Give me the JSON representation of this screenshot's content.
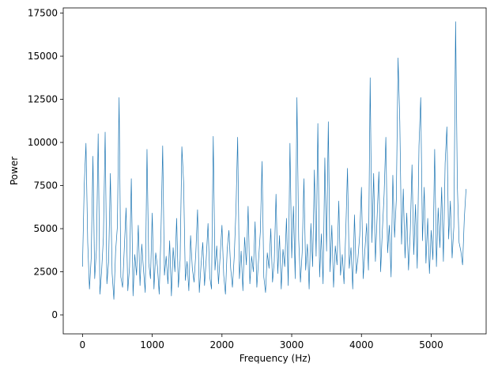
{
  "chart_data": {
    "type": "line",
    "xlabel": "Frequency (Hz)",
    "ylabel": "Power",
    "xlim": [
      -276,
      5788
    ],
    "ylim": [
      -1100,
      17800
    ],
    "xticks": [
      0,
      1000,
      2000,
      3000,
      4000,
      5000
    ],
    "yticks": [
      0,
      2500,
      5000,
      7500,
      10000,
      12500,
      15000,
      17500
    ],
    "grid": false,
    "x": [
      0,
      25,
      50,
      75,
      100,
      125,
      150,
      175,
      200,
      225,
      250,
      275,
      300,
      325,
      350,
      375,
      400,
      425,
      450,
      475,
      500,
      525,
      550,
      575,
      600,
      625,
      650,
      675,
      700,
      725,
      750,
      775,
      800,
      825,
      850,
      875,
      900,
      925,
      950,
      975,
      1000,
      1025,
      1050,
      1075,
      1100,
      1125,
      1150,
      1175,
      1200,
      1225,
      1250,
      1275,
      1300,
      1325,
      1350,
      1375,
      1400,
      1425,
      1450,
      1475,
      1500,
      1525,
      1550,
      1575,
      1600,
      1625,
      1650,
      1675,
      1700,
      1725,
      1750,
      1775,
      1800,
      1825,
      1850,
      1875,
      1900,
      1925,
      1950,
      1975,
      2000,
      2025,
      2050,
      2075,
      2100,
      2125,
      2150,
      2175,
      2200,
      2225,
      2250,
      2275,
      2300,
      2325,
      2350,
      2375,
      2400,
      2425,
      2450,
      2475,
      2500,
      2525,
      2550,
      2575,
      2600,
      2625,
      2650,
      2675,
      2700,
      2725,
      2750,
      2775,
      2800,
      2825,
      2850,
      2875,
      2900,
      2925,
      2950,
      2975,
      3000,
      3025,
      3050,
      3075,
      3100,
      3125,
      3150,
      3175,
      3200,
      3225,
      3250,
      3275,
      3300,
      3325,
      3350,
      3375,
      3400,
      3425,
      3450,
      3475,
      3500,
      3525,
      3550,
      3575,
      3600,
      3625,
      3650,
      3675,
      3700,
      3725,
      3750,
      3775,
      3800,
      3825,
      3850,
      3875,
      3900,
      3925,
      3950,
      3975,
      4000,
      4025,
      4050,
      4075,
      4100,
      4125,
      4150,
      4175,
      4200,
      4225,
      4250,
      4275,
      4300,
      4325,
      4350,
      4375,
      4400,
      4425,
      4450,
      4475,
      4500,
      4525,
      4550,
      4575,
      4600,
      4625,
      4650,
      4675,
      4700,
      4725,
      4750,
      4775,
      4800,
      4825,
      4850,
      4875,
      4900,
      4925,
      4950,
      4975,
      5000,
      5025,
      5050,
      5075,
      5100,
      5125,
      5150,
      5175,
      5200,
      5225,
      5250,
      5275,
      5300,
      5325,
      5350,
      5375,
      5400,
      5425,
      5450,
      5475,
      5500
    ],
    "series": [
      {
        "color": "#1f77b4",
        "values": [
          2800,
          7500,
          9950,
          4200,
          1500,
          3300,
          9200,
          2100,
          3800,
          10500,
          1200,
          2600,
          4500,
          10600,
          1800,
          3100,
          8200,
          2400,
          900,
          3700,
          5100,
          12600,
          2200,
          1600,
          3900,
          6200,
          1400,
          2800,
          7900,
          1100,
          3500,
          2300,
          5200,
          1700,
          4100,
          2600,
          1300,
          9600,
          3000,
          2100,
          5900,
          1500,
          3600,
          2800,
          1200,
          4700,
          9800,
          2300,
          3400,
          1800,
          4300,
          1100,
          3900,
          2500,
          5600,
          1600,
          3200,
          9750,
          7700,
          2000,
          3100,
          1400,
          4600,
          2700,
          1900,
          3600,
          6100,
          1300,
          2900,
          4200,
          1700,
          3300,
          5300,
          2200,
          1500,
          10350,
          2600,
          4000,
          1800,
          3500,
          5200,
          2300,
          1200,
          3800,
          4900,
          2700,
          1600,
          3300,
          6000,
          10300,
          2100,
          3700,
          1400,
          4500,
          2900,
          6300,
          1800,
          3400,
          2500,
          5400,
          1600,
          3200,
          4800,
          8900,
          2200,
          1300,
          3600,
          2700,
          5000,
          1900,
          3100,
          7000,
          2400,
          4600,
          1500,
          3800,
          2800,
          5600,
          1700,
          9950,
          3300,
          6300,
          2100,
          12600,
          4400,
          1900,
          3600,
          7900,
          2600,
          4100,
          1500,
          5300,
          2800,
          8400,
          3400,
          11100,
          2200,
          4700,
          1800,
          9100,
          3700,
          11200,
          2500,
          5200,
          1600,
          4000,
          2900,
          6600,
          2300,
          3500,
          1800,
          4800,
          8500,
          2700,
          3900,
          1500,
          5800,
          2400,
          3300,
          4600,
          7400,
          2100,
          3800,
          5300,
          2600,
          13750,
          4200,
          8200,
          3100,
          5700,
          8300,
          2500,
          4900,
          7000,
          10300,
          3600,
          5200,
          2200,
          8100,
          4500,
          6700,
          14900,
          11200,
          4100,
          7300,
          3300,
          5900,
          2600,
          4800,
          8700,
          3500,
          6400,
          2700,
          9800,
          12600,
          4300,
          7400,
          3000,
          5600,
          2400,
          4900,
          3200,
          9600,
          2800,
          6200,
          3900,
          7400,
          3100,
          8800,
          10900,
          4400,
          6600,
          3300,
          5100,
          17000,
          7500,
          4200,
          3700,
          2900,
          5600,
          7300
        ]
      }
    ]
  }
}
